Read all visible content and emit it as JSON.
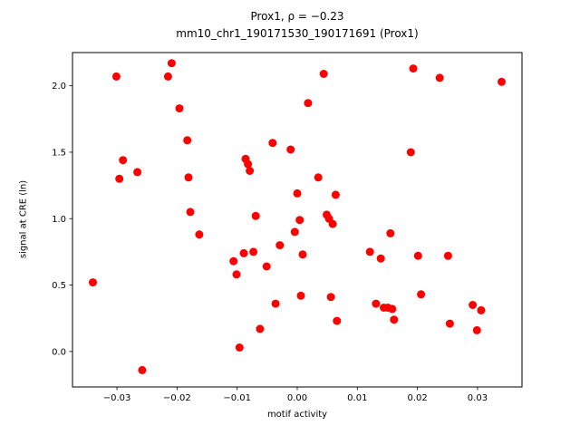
{
  "chart_data": {
    "type": "scatter",
    "title_line1": "Prox1, ρ = −0.23",
    "title_line2": "mm10_chr1_190171530_190171691 (Prox1)",
    "xlabel": "motif activity",
    "ylabel": "signal at CRE (ln)",
    "marker_color": "#ff0000",
    "background_color": "#ffffff",
    "axis_color": "#000000",
    "grid": false,
    "legend": false,
    "xlim": [
      -0.0374,
      0.0374
    ],
    "ylim": [
      -0.267,
      2.25
    ],
    "xticks": [
      -0.03,
      -0.02,
      -0.01,
      0.0,
      0.01,
      0.02,
      0.03
    ],
    "yticks": [
      0.0,
      0.5,
      1.0,
      1.5,
      2.0
    ],
    "points": [
      [
        -0.034,
        0.52
      ],
      [
        -0.0301,
        2.07
      ],
      [
        -0.0296,
        1.3
      ],
      [
        -0.029,
        1.44
      ],
      [
        -0.0266,
        1.35
      ],
      [
        -0.0258,
        -0.14
      ],
      [
        -0.0215,
        2.07
      ],
      [
        -0.0209,
        2.17
      ],
      [
        -0.0196,
        1.83
      ],
      [
        -0.0183,
        1.59
      ],
      [
        -0.0181,
        1.31
      ],
      [
        -0.0178,
        1.05
      ],
      [
        -0.0163,
        0.88
      ],
      [
        -0.0106,
        0.68
      ],
      [
        -0.0101,
        0.58
      ],
      [
        -0.0096,
        0.03
      ],
      [
        -0.0089,
        0.74
      ],
      [
        -0.0086,
        1.45
      ],
      [
        -0.0082,
        1.41
      ],
      [
        -0.0079,
        1.36
      ],
      [
        -0.0073,
        0.75
      ],
      [
        -0.0069,
        1.02
      ],
      [
        -0.0062,
        0.17
      ],
      [
        -0.0051,
        0.64
      ],
      [
        -0.0041,
        1.57
      ],
      [
        -0.0036,
        0.36
      ],
      [
        -0.0029,
        0.8
      ],
      [
        -0.0011,
        1.52
      ],
      [
        -0.0004,
        0.9
      ],
      [
        0.0,
        1.19
      ],
      [
        0.0004,
        0.99
      ],
      [
        0.0006,
        0.42
      ],
      [
        0.0009,
        0.73
      ],
      [
        0.0018,
        1.87
      ],
      [
        0.0035,
        1.31
      ],
      [
        0.0044,
        2.09
      ],
      [
        0.0049,
        1.03
      ],
      [
        0.0053,
        1.0
      ],
      [
        0.0056,
        0.41
      ],
      [
        0.0059,
        0.96
      ],
      [
        0.0064,
        1.18
      ],
      [
        0.0066,
        0.23
      ],
      [
        0.0121,
        0.75
      ],
      [
        0.0131,
        0.36
      ],
      [
        0.0139,
        0.7
      ],
      [
        0.0144,
        0.33
      ],
      [
        0.0151,
        0.33
      ],
      [
        0.0155,
        0.89
      ],
      [
        0.0158,
        0.32
      ],
      [
        0.0161,
        0.24
      ],
      [
        0.0189,
        1.5
      ],
      [
        0.0193,
        2.13
      ],
      [
        0.0201,
        0.72
      ],
      [
        0.0206,
        0.43
      ],
      [
        0.0237,
        2.06
      ],
      [
        0.0251,
        0.72
      ],
      [
        0.0254,
        0.21
      ],
      [
        0.0292,
        0.35
      ],
      [
        0.0299,
        0.16
      ],
      [
        0.0306,
        0.31
      ],
      [
        0.034,
        2.03
      ]
    ]
  }
}
